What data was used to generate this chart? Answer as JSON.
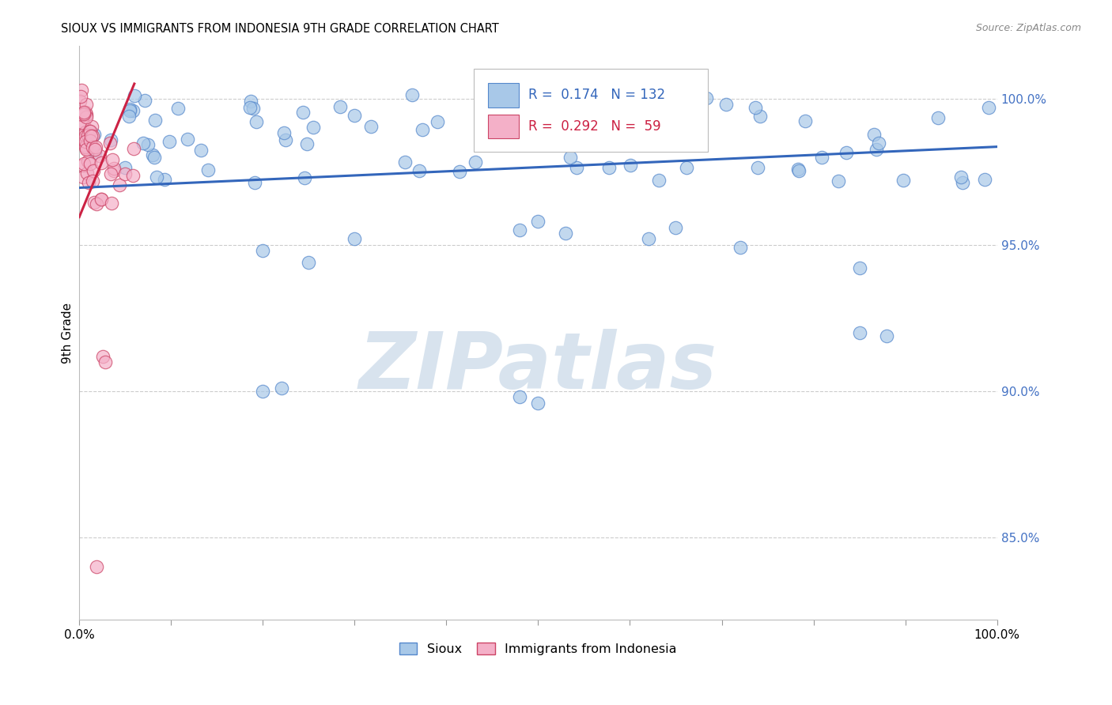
{
  "title": "SIOUX VS IMMIGRANTS FROM INDONESIA 9TH GRADE CORRELATION CHART",
  "source": "Source: ZipAtlas.com",
  "ylabel": "9th Grade",
  "y_tick_labels": [
    "85.0%",
    "90.0%",
    "95.0%",
    "100.0%"
  ],
  "y_tick_values": [
    0.85,
    0.9,
    0.95,
    1.0
  ],
  "x_tick_values": [
    0.0,
    0.1,
    0.2,
    0.3,
    0.4,
    0.5,
    0.6,
    0.7,
    0.8,
    0.9,
    1.0
  ],
  "xlim": [
    0.0,
    1.0
  ],
  "ylim": [
    0.822,
    1.018
  ],
  "blue_R": 0.174,
  "blue_N": 132,
  "pink_R": 0.292,
  "pink_N": 59,
  "blue_fill": "#A8C8E8",
  "blue_edge": "#5588CC",
  "pink_fill": "#F4B0C8",
  "pink_edge": "#CC4466",
  "blue_line": "#3366BB",
  "pink_line": "#CC2244",
  "blue_label": "Sioux",
  "pink_label": "Immigrants from Indonesia",
  "blue_trend": [
    0.0,
    1.0,
    0.9695,
    0.9835
  ],
  "pink_trend": [
    0.0,
    0.06,
    0.9595,
    1.005
  ],
  "watermark_text": "ZIPatlas",
  "bg_color": "#FFFFFF",
  "grid_color": "#CCCCCC",
  "right_tick_color": "#4472C4",
  "source_color": "#888888"
}
